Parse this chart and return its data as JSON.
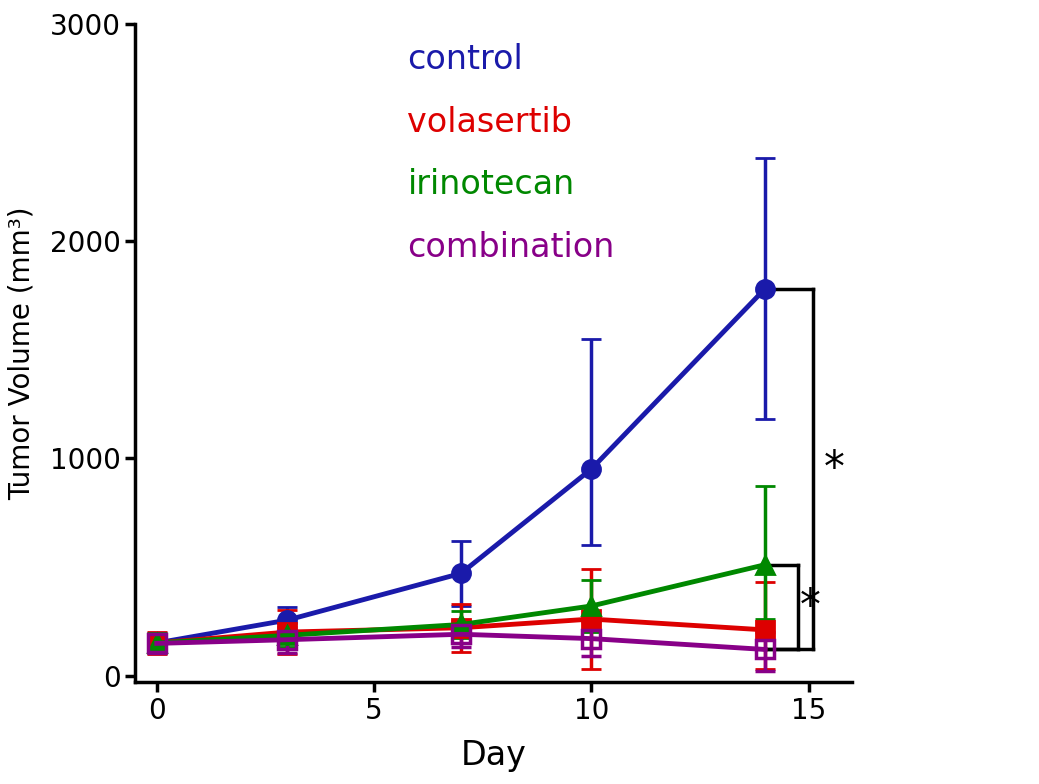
{
  "days": [
    0,
    3,
    7,
    10,
    14
  ],
  "control": {
    "y": [
      150,
      255,
      470,
      950,
      1780
    ],
    "yerr_lo": [
      40,
      60,
      150,
      350,
      600
    ],
    "yerr_hi": [
      40,
      60,
      150,
      600,
      600
    ],
    "color": "#1a1aaa",
    "marker": "o",
    "label": "control"
  },
  "volasertib": {
    "y": [
      150,
      200,
      220,
      260,
      210
    ],
    "yerr_lo": [
      50,
      100,
      110,
      230,
      180
    ],
    "yerr_hi": [
      50,
      100,
      110,
      230,
      220
    ],
    "color": "#dd0000",
    "marker": "s",
    "label": "volasertib"
  },
  "irinotecan": {
    "y": [
      150,
      185,
      235,
      320,
      510
    ],
    "yerr_lo": [
      45,
      55,
      60,
      120,
      250
    ],
    "yerr_hi": [
      45,
      55,
      60,
      120,
      360
    ],
    "color": "#008800",
    "marker": "^",
    "label": "irinotecan"
  },
  "combination": {
    "y": [
      148,
      165,
      190,
      170,
      120
    ],
    "yerr_lo": [
      45,
      60,
      60,
      80,
      100
    ],
    "yerr_hi": [
      45,
      60,
      60,
      80,
      80
    ],
    "color": "#880088",
    "marker": "s",
    "label": "combination"
  },
  "ylabel": "Tumor Volume (mm³)",
  "xlabel": "Day",
  "ylim": [
    -30,
    3000
  ],
  "yticks": [
    0,
    1000,
    2000,
    3000
  ],
  "xticks": [
    0,
    5,
    10,
    15
  ],
  "linewidth": 3.5,
  "markersize": 13,
  "capsize": 7,
  "elinewidth": 2.5,
  "legend_entries": [
    {
      "label": "control",
      "color": "#1a1aaa"
    },
    {
      "label": "volasertib",
      "color": "#dd0000"
    },
    {
      "label": "irinotecan",
      "color": "#008800"
    },
    {
      "label": "combination",
      "color": "#880088"
    }
  ]
}
